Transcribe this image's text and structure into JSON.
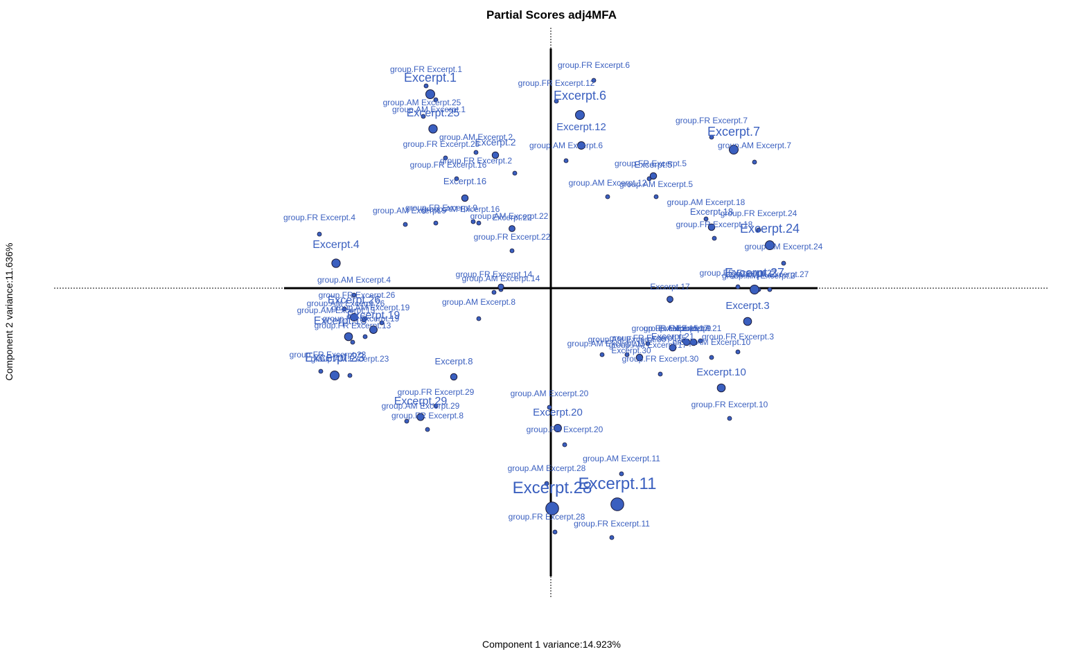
{
  "chart_data": {
    "type": "scatter",
    "title": "Partial Scores adj4MFA",
    "xlabel": "Component 1 variance:14.923%",
    "ylabel": "Component 2 variance:11.636%",
    "xlim": [
      -1.92,
      1.92
    ],
    "ylim": [
      -1.98,
      1.98
    ],
    "grid": false,
    "point_color": "#3a5fbf",
    "point_stroke": "#1a1a3a",
    "main_points": [
      {
        "name": "Excerpt.1",
        "x": -0.87,
        "y": 1.4,
        "weight": 1.0
      },
      {
        "name": "Excerpt.25",
        "x": -0.85,
        "y": 1.15,
        "weight": 0.9
      },
      {
        "name": "Excerpt.2",
        "x": -0.4,
        "y": 0.96,
        "weight": 0.5
      },
      {
        "name": "Excerpt.16",
        "x": -0.62,
        "y": 0.65,
        "weight": 0.5
      },
      {
        "name": "Excerpt.4",
        "x": -1.55,
        "y": 0.18,
        "weight": 0.9
      },
      {
        "name": "Excerpt.22",
        "x": -0.28,
        "y": 0.43,
        "weight": 0.4
      },
      {
        "name": "Excerpt.6",
        "x": 0.21,
        "y": 1.25,
        "weight": 1.0
      },
      {
        "name": "Excerpt.12",
        "x": 0.22,
        "y": 1.03,
        "weight": 0.7
      },
      {
        "name": "Excerpt.5",
        "x": 0.74,
        "y": 0.81,
        "weight": 0.5
      },
      {
        "name": "Excerpt.7",
        "x": 1.32,
        "y": 1.0,
        "weight": 1.0
      },
      {
        "name": "Excerpt.18",
        "x": 1.16,
        "y": 0.44,
        "weight": 0.5
      },
      {
        "name": "Excerpt.24",
        "x": 1.58,
        "y": 0.31,
        "weight": 1.0
      },
      {
        "name": "Excerpt.27",
        "x": 1.47,
        "y": -0.01,
        "weight": 1.0
      },
      {
        "name": "Excerpt.3",
        "x": 1.42,
        "y": -0.24,
        "weight": 0.8
      },
      {
        "name": "Excerpt.17",
        "x": 0.86,
        "y": -0.08,
        "weight": 0.4
      },
      {
        "name": "Excerpt.21",
        "x": 0.98,
        "y": -0.39,
        "weight": 0.5
      },
      {
        "name": "Excerpt.9",
        "x": 1.03,
        "y": -0.39,
        "weight": 0.5
      },
      {
        "name": "Excerpt.15",
        "x": 0.88,
        "y": -0.43,
        "weight": 0.5
      },
      {
        "name": "Excerpt.30",
        "x": 0.64,
        "y": -0.5,
        "weight": 0.5
      },
      {
        "name": "Excerpt.10",
        "x": 1.23,
        "y": -0.72,
        "weight": 0.8
      },
      {
        "name": "Excerpt.26",
        "x": -1.42,
        "y": -0.21,
        "weight": 0.7
      },
      {
        "name": "Excerpt.19",
        "x": -1.28,
        "y": -0.3,
        "weight": 0.7
      },
      {
        "name": "Excerpt.13",
        "x": -1.46,
        "y": -0.35,
        "weight": 0.8
      },
      {
        "name": "Excerpt.23",
        "x": -1.56,
        "y": -0.63,
        "weight": 1.0
      },
      {
        "name": "Excerpt.8",
        "x": -0.7,
        "y": -0.64,
        "weight": 0.5
      },
      {
        "name": "Excerpt.29",
        "x": -0.94,
        "y": -0.93,
        "weight": 0.6
      },
      {
        "name": "Excerpt.20",
        "x": 0.05,
        "y": -1.01,
        "weight": 0.7
      },
      {
        "name": "Excerpt.28",
        "x": 0.01,
        "y": -1.59,
        "weight": 1.8
      },
      {
        "name": "Excerpt.11",
        "x": 0.48,
        "y": -1.56,
        "weight": 1.8
      },
      {
        "name": "Excerpt.14",
        "x": -0.36,
        "y": 0.01,
        "weight": 0.3
      }
    ],
    "main_labels": [
      {
        "text": "Excerpt.1",
        "x": -0.87,
        "y": 1.49,
        "size": 18
      },
      {
        "text": "Excerpt.25",
        "x": -0.85,
        "y": 1.24,
        "size": 16
      },
      {
        "text": "Excerpt.2",
        "x": -0.4,
        "y": 1.03,
        "size": 14
      },
      {
        "text": "Excerpt.16",
        "x": -0.62,
        "y": 0.75,
        "size": 13
      },
      {
        "text": "Excerpt.4",
        "x": -1.55,
        "y": 0.29,
        "size": 16
      },
      {
        "text": "Excerpt.22",
        "x": -0.28,
        "y": 0.49,
        "size": 12
      },
      {
        "text": "Excerpt.6",
        "x": 0.21,
        "y": 1.36,
        "size": 18
      },
      {
        "text": "Excerpt.12",
        "x": 0.22,
        "y": 1.14,
        "size": 15
      },
      {
        "text": "Excerpt.5",
        "x": 0.74,
        "y": 0.87,
        "size": 13
      },
      {
        "text": "Excerpt.7",
        "x": 1.32,
        "y": 1.1,
        "size": 18
      },
      {
        "text": "Excerpt.18",
        "x": 1.16,
        "y": 0.53,
        "size": 13
      },
      {
        "text": "Excerpt.24",
        "x": 1.58,
        "y": 0.4,
        "size": 18
      },
      {
        "text": "Excerpt.27",
        "x": 1.47,
        "y": 0.08,
        "size": 18
      },
      {
        "text": "Excerpt.3",
        "x": 1.42,
        "y": -0.15,
        "size": 15
      },
      {
        "text": "Excerpt.17",
        "x": 0.86,
        "y": -0.01,
        "size": 12
      },
      {
        "text": "Excerpt.21",
        "x": 0.88,
        "y": -0.37,
        "size": 13
      },
      {
        "text": "Excerpt.9",
        "x": 1.03,
        "y": -0.31,
        "size": 12
      },
      {
        "text": "Excerpt.15",
        "x": 0.92,
        "y": -0.31,
        "size": 12
      },
      {
        "text": "Excerpt.30",
        "x": 0.58,
        "y": -0.47,
        "size": 12
      },
      {
        "text": "Excerpt.10",
        "x": 1.23,
        "y": -0.63,
        "size": 15
      },
      {
        "text": "Excerpt.26",
        "x": -1.42,
        "y": -0.11,
        "size": 16
      },
      {
        "text": "Excerpt.19",
        "x": -1.28,
        "y": -0.22,
        "size": 16
      },
      {
        "text": "Excerpt.13",
        "x": -1.52,
        "y": -0.26,
        "size": 16
      },
      {
        "text": "Excerpt.23",
        "x": -1.56,
        "y": -0.53,
        "size": 18
      },
      {
        "text": "Excerpt.8",
        "x": -0.7,
        "y": -0.55,
        "size": 13
      },
      {
        "text": "Excerpt.29",
        "x": -0.94,
        "y": -0.84,
        "size": 16
      },
      {
        "text": "Excerpt.20",
        "x": 0.05,
        "y": -0.92,
        "size": 15
      },
      {
        "text": "Excerpt.28",
        "x": 0.01,
        "y": -1.48,
        "size": 24
      },
      {
        "text": "Excerpt.11",
        "x": 0.48,
        "y": -1.45,
        "size": 24
      }
    ],
    "partial_points": [
      {
        "name": "group.FR Excerpt.1",
        "x": -0.9,
        "y": 1.46
      },
      {
        "name": "group.AM Excerpt.25",
        "x": -0.83,
        "y": 1.36
      },
      {
        "name": "group.AM Excerpt.1",
        "x": -0.92,
        "y": 1.24
      },
      {
        "name": "group.AM Excerpt.2",
        "x": -0.76,
        "y": 0.94
      },
      {
        "name": "group.FR Excerpt.25",
        "x": -0.54,
        "y": 0.98
      },
      {
        "name": "group.FR Excerpt.2",
        "x": -0.26,
        "y": 0.83
      },
      {
        "name": "group.FR Excerpt.16",
        "x": -0.68,
        "y": 0.79
      },
      {
        "name": "group.AM Excerpt.16",
        "x": -0.56,
        "y": 0.48
      },
      {
        "name": "group.FR Excerpt.9",
        "x": -0.83,
        "y": 0.47
      },
      {
        "name": "group.AM Excerpt.9",
        "x": -1.05,
        "y": 0.46
      },
      {
        "name": "group.FR Excerpt.4",
        "x": -1.67,
        "y": 0.39
      },
      {
        "name": "group.AM Excerpt.22",
        "x": -0.52,
        "y": 0.47
      },
      {
        "name": "group.FR Excerpt.22",
        "x": -0.28,
        "y": 0.27
      },
      {
        "name": "group.FR Excerpt.6",
        "x": 0.31,
        "y": 1.5
      },
      {
        "name": "group.FR Excerpt.12",
        "x": 0.04,
        "y": 1.35
      },
      {
        "name": "group.AM Excerpt.6",
        "x": 0.11,
        "y": 0.92
      },
      {
        "name": "group.FR Excerpt.5",
        "x": 0.71,
        "y": 0.79
      },
      {
        "name": "group.AM Excerpt.12",
        "x": 0.41,
        "y": 0.66
      },
      {
        "name": "group.AM Excerpt.5",
        "x": 0.76,
        "y": 0.66
      },
      {
        "name": "group.FR Excerpt.7",
        "x": 1.16,
        "y": 1.09
      },
      {
        "name": "group.AM Excerpt.7",
        "x": 1.47,
        "y": 0.91
      },
      {
        "name": "group.AM Excerpt.18",
        "x": 1.12,
        "y": 0.5
      },
      {
        "name": "group.FR Excerpt.24",
        "x": 1.5,
        "y": 0.42
      },
      {
        "name": "group.FR Excerpt.18",
        "x": 1.18,
        "y": 0.36
      },
      {
        "name": "group.AM Excerpt.24",
        "x": 1.68,
        "y": 0.18
      },
      {
        "name": "group.FR Excerpt.27",
        "x": 1.35,
        "y": 0.01
      },
      {
        "name": "group.AM Excerpt.27",
        "x": 1.58,
        "y": -0.01
      },
      {
        "name": "group.AM Excerpt.3",
        "x": 1.5,
        "y": -0.01
      },
      {
        "name": "group.FR Excerpt.3",
        "x": 1.35,
        "y": -0.46
      },
      {
        "name": "group.FR Excerpt.17",
        "x": 0.86,
        "y": -0.09
      },
      {
        "name": "group.AM Excerpt.17",
        "x": 0.7,
        "y": -0.4
      },
      {
        "name": "group.AM Excerpt.21",
        "x": 1.08,
        "y": -0.38
      },
      {
        "name": "group.AM Excerpt.10",
        "x": 1.16,
        "y": -0.5
      },
      {
        "name": "group.FR Excerpt.10",
        "x": 1.29,
        "y": -0.94
      },
      {
        "name": "group.AM Excerpt.30",
        "x": 0.55,
        "y": -0.48
      },
      {
        "name": "group.FR Excerpt.30",
        "x": 0.79,
        "y": -0.62
      },
      {
        "name": "group.FR Excerpt.15",
        "x": 0.96,
        "y": -0.38
      },
      {
        "name": "group.AM Excerpt.15",
        "x": 0.37,
        "y": -0.48
      },
      {
        "name": "group.FR Excerpt.14",
        "x": -0.41,
        "y": -0.03
      },
      {
        "name": "group.AM Excerpt.14",
        "x": -0.36,
        "y": -0.01
      },
      {
        "name": "group.AM Excerpt.4",
        "x": -1.42,
        "y": -0.05
      },
      {
        "name": "group.AM Excerpt.8",
        "x": -0.52,
        "y": -0.22
      },
      {
        "name": "group.FR Excerpt.26",
        "x": -1.34,
        "y": -0.22
      },
      {
        "name": "group.AM Excerpt.26",
        "x": -1.49,
        "y": -0.15
      },
      {
        "name": "group.AM Excerpt.19",
        "x": -1.22,
        "y": -0.25
      },
      {
        "name": "group.FR Excerpt.19",
        "x": -1.35,
        "y": -0.23
      },
      {
        "name": "group.FR Excerpt.13",
        "x": -1.43,
        "y": -0.39
      },
      {
        "name": "group.AM Excerpt.13",
        "x": -1.34,
        "y": -0.35
      },
      {
        "name": "group.FR Excerpt.23",
        "x": -1.66,
        "y": -0.6
      },
      {
        "name": "group.AM Excerpt.23",
        "x": -1.45,
        "y": -0.63
      },
      {
        "name": "group.FR Excerpt.29",
        "x": -0.83,
        "y": -0.85
      },
      {
        "name": "group.AM Excerpt.29",
        "x": -1.04,
        "y": -0.96
      },
      {
        "name": "group.FR Excerpt.8",
        "x": -0.89,
        "y": -1.02
      },
      {
        "name": "group.AM Excerpt.20",
        "x": -0.01,
        "y": -0.86
      },
      {
        "name": "group.FR Excerpt.20",
        "x": 0.1,
        "y": -1.13
      },
      {
        "name": "group.AM Excerpt.11",
        "x": 0.51,
        "y": -1.34
      },
      {
        "name": "group.AM Excerpt.28",
        "x": -0.03,
        "y": -1.41
      },
      {
        "name": "group.FR Excerpt.28",
        "x": 0.03,
        "y": -1.76
      },
      {
        "name": "group.FR Excerpt.11",
        "x": 0.44,
        "y": -1.8
      }
    ],
    "partial_labels": [
      {
        "text": "group.FR Excerpt.1",
        "x": -0.9,
        "y": 1.56
      },
      {
        "text": "group.AM Excerpt.25",
        "x": -0.93,
        "y": 1.32
      },
      {
        "text": "group.AM Excerpt.1",
        "x": -0.88,
        "y": 1.27
      },
      {
        "text": "group.AM Excerpt.2",
        "x": -0.54,
        "y": 1.07
      },
      {
        "text": "group.FR Excerpt.25",
        "x": -0.79,
        "y": 1.02
      },
      {
        "text": "group.FR Excerpt.2",
        "x": -0.54,
        "y": 0.9
      },
      {
        "text": "group.FR Excerpt.16",
        "x": -0.74,
        "y": 0.87
      },
      {
        "text": "group.AM Excerpt.16",
        "x": -0.65,
        "y": 0.55
      },
      {
        "text": "group.FR Excerpt.9",
        "x": -0.79,
        "y": 0.56
      },
      {
        "text": "group.AM Excerpt.9",
        "x": -1.02,
        "y": 0.54
      },
      {
        "text": "group.FR Excerpt.4",
        "x": -1.67,
        "y": 0.49
      },
      {
        "text": "group.AM Excerpt.22",
        "x": -0.3,
        "y": 0.5
      },
      {
        "text": "group.FR Excerpt.22",
        "x": -0.28,
        "y": 0.35
      },
      {
        "text": "group.FR Excerpt.6",
        "x": 0.31,
        "y": 1.59
      },
      {
        "text": "group.FR Excerpt.12",
        "x": 0.04,
        "y": 1.46
      },
      {
        "text": "group.AM Excerpt.6",
        "x": 0.11,
        "y": 1.01
      },
      {
        "text": "group.FR Excerpt.5",
        "x": 0.72,
        "y": 0.88
      },
      {
        "text": "group.AM Excerpt.12",
        "x": 0.41,
        "y": 0.74
      },
      {
        "text": "group.AM Excerpt.5",
        "x": 0.76,
        "y": 0.73
      },
      {
        "text": "group.FR Excerpt.7",
        "x": 1.16,
        "y": 1.19
      },
      {
        "text": "group.AM Excerpt.7",
        "x": 1.47,
        "y": 1.01
      },
      {
        "text": "group.AM Excerpt.18",
        "x": 1.12,
        "y": 0.6
      },
      {
        "text": "group.FR Excerpt.24",
        "x": 1.5,
        "y": 0.52
      },
      {
        "text": "group.FR Excerpt.18",
        "x": 1.18,
        "y": 0.44
      },
      {
        "text": "group.AM Excerpt.24",
        "x": 1.68,
        "y": 0.28
      },
      {
        "text": "group.FR Excerpt.27",
        "x": 1.35,
        "y": 0.09
      },
      {
        "text": "group.AM Excerpt.27",
        "x": 1.58,
        "y": 0.08
      },
      {
        "text": "group.AM Excerpt.3",
        "x": 1.5,
        "y": 0.07
      },
      {
        "text": "group.FR Excerpt.3",
        "x": 1.35,
        "y": -0.37
      },
      {
        "text": "group.FR Excerpt.17",
        "x": 0.86,
        "y": -0.31
      },
      {
        "text": "group.AM Excerpt.17",
        "x": 0.7,
        "y": -0.43
      },
      {
        "text": "group.AM Excerpt.21",
        "x": 0.95,
        "y": -0.31
      },
      {
        "text": "group.AM Excerpt.10",
        "x": 1.16,
        "y": -0.41
      },
      {
        "text": "group.FR Excerpt.10",
        "x": 1.29,
        "y": -0.86
      },
      {
        "text": "group.AM Excerpt.30",
        "x": 0.55,
        "y": -0.39
      },
      {
        "text": "group.FR Excerpt.30",
        "x": 0.79,
        "y": -0.53
      },
      {
        "text": "group.FR Excerpt.15",
        "x": 0.7,
        "y": -0.38
      },
      {
        "text": "group.AM Excerpt.15",
        "x": 0.4,
        "y": -0.42
      },
      {
        "text": "group.FR Excerpt.14",
        "x": -0.41,
        "y": 0.08
      },
      {
        "text": "group.AM Excerpt.14",
        "x": -0.36,
        "y": 0.05
      },
      {
        "text": "group.AM Excerpt.4",
        "x": -1.42,
        "y": 0.04
      },
      {
        "text": "group.AM Excerpt.8",
        "x": -0.52,
        "y": -0.12
      },
      {
        "text": "group.FR Excerpt.26",
        "x": -1.4,
        "y": -0.07
      },
      {
        "text": "group.AM Excerpt.26",
        "x": -1.48,
        "y": -0.13
      },
      {
        "text": "group.AM Excerpt.19",
        "x": -1.3,
        "y": -0.16
      },
      {
        "text": "group.FR Excerpt.19",
        "x": -1.37,
        "y": -0.24
      },
      {
        "text": "group.FR Excerpt.13",
        "x": -1.43,
        "y": -0.29
      },
      {
        "text": "group.AM Excerpt.13",
        "x": -1.55,
        "y": -0.18
      },
      {
        "text": "group.FR Excerpt.23",
        "x": -1.61,
        "y": -0.5
      },
      {
        "text": "group.AM Excerpt.23",
        "x": -1.45,
        "y": -0.53
      },
      {
        "text": "group.FR Excerpt.29",
        "x": -0.83,
        "y": -0.77
      },
      {
        "text": "group.AM Excerpt.29",
        "x": -0.94,
        "y": -0.87
      },
      {
        "text": "group.FR Excerpt.8",
        "x": -0.89,
        "y": -0.94
      },
      {
        "text": "group.AM Excerpt.20",
        "x": -0.01,
        "y": -0.78
      },
      {
        "text": "group.FR Excerpt.20",
        "x": 0.1,
        "y": -1.04
      },
      {
        "text": "group.AM Excerpt.11",
        "x": 0.51,
        "y": -1.25
      },
      {
        "text": "group.AM Excerpt.28",
        "x": -0.03,
        "y": -1.32
      },
      {
        "text": "group.FR Excerpt.28",
        "x": -0.03,
        "y": -1.67
      },
      {
        "text": "group.FR Excerpt.11",
        "x": 0.44,
        "y": -1.72
      }
    ]
  }
}
